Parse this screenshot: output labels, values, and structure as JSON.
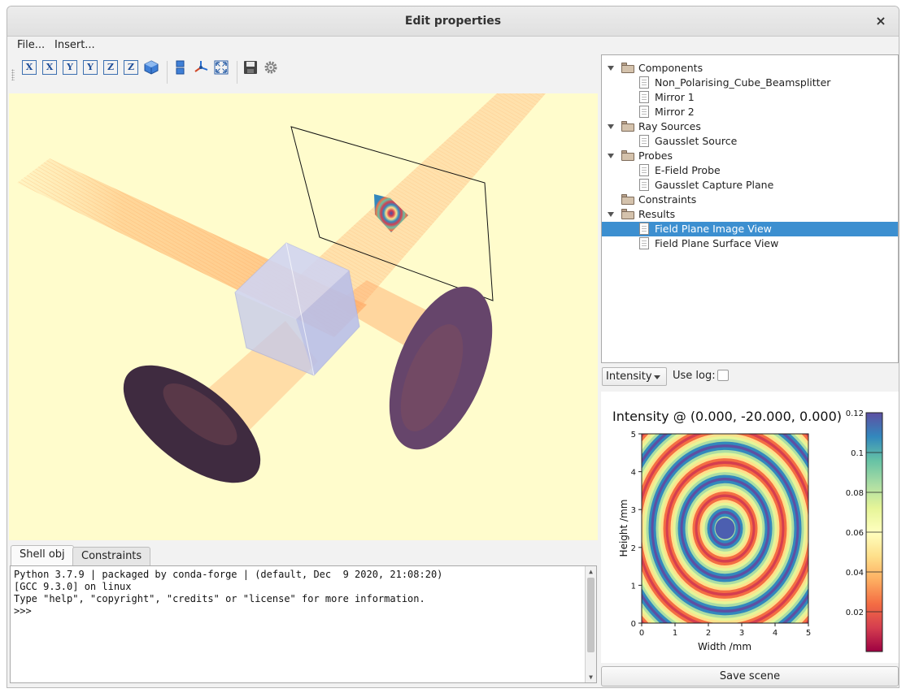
{
  "window": {
    "title": "Edit properties",
    "close_glyph": "×"
  },
  "menu": {
    "file": "File...",
    "insert": "Insert..."
  },
  "toolbar": {
    "axis_buttons": [
      "X",
      "X",
      "Y",
      "Y",
      "Z",
      "Z"
    ],
    "icons": [
      "view-x-pos-icon",
      "view-x-neg-icon",
      "view-y-pos-icon",
      "view-y-neg-icon",
      "view-z-pos-icon",
      "view-z-neg-icon",
      "isometric-view-icon",
      "parallel-projection-icon",
      "axes-indicator-icon",
      "full-screen-icon",
      "save-icon",
      "settings-icon"
    ]
  },
  "tabs": {
    "shell": "Shell obj",
    "constraints": "Constraints"
  },
  "shell": {
    "lines": [
      "Python 3.7.9 | packaged by conda-forge | (default, Dec  9 2020, 21:08:20)",
      "[GCC 9.3.0] on linux",
      "Type \"help\", \"copyright\", \"credits\" or \"license\" for more information.",
      ">>>"
    ]
  },
  "tree": {
    "components": "Components",
    "beamsplitter": "Non_Polarising_Cube_Beamsplitter",
    "mirror1": "Mirror 1",
    "mirror2": "Mirror 2",
    "ray_sources": "Ray Sources",
    "gausslet_source": "Gausslet Source",
    "probes": "Probes",
    "efield_probe": "E-Field Probe",
    "capture_plane": "Gausslet Capture Plane",
    "constraints": "Constraints",
    "results": "Results",
    "image_view": "Field Plane Image View",
    "surface_view": "Field Plane Surface View",
    "selected_item": "Field Plane Image View"
  },
  "plot_controls": {
    "mode_value": "Intensity",
    "use_log_label": "Use log:",
    "use_log_checked": false
  },
  "chart_data": {
    "type": "heatmap",
    "title": "Intensity @ (0.000, -20.000, 0.000)",
    "xlabel": "Width /mm",
    "ylabel": "Height /mm",
    "xlim": [
      0,
      5
    ],
    "ylim": [
      0,
      5
    ],
    "x_ticks": [
      "0",
      "1",
      "2",
      "3",
      "4",
      "5"
    ],
    "y_ticks": [
      "0",
      "1",
      "2",
      "3",
      "4",
      "5"
    ],
    "pattern": "concentric rings centred at (2.5, 2.5)",
    "colorbar": {
      "colormap": "Spectral",
      "range": [
        0,
        0.12
      ],
      "ticks": [
        "0.12",
        "0.1",
        "0.08",
        "0.06",
        "0.04",
        "0.02"
      ]
    }
  },
  "save_button": "Save scene"
}
